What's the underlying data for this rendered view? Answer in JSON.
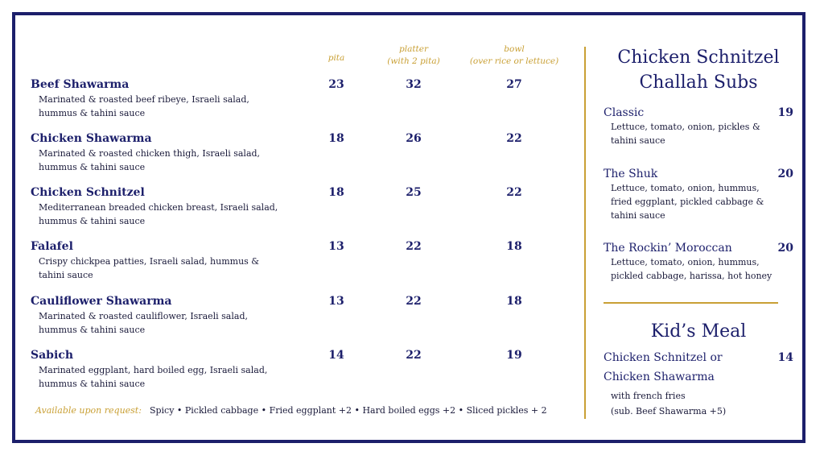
{
  "headers": {
    "pita": "pita",
    "platter": "platter",
    "platter_sub": "(with 2 pita)",
    "bowl": "bowl",
    "bowl_sub": "(over rice or lettuce)"
  },
  "items": [
    {
      "name": "Beef Shawarma",
      "desc1": "Marinated & roasted beef ribeye, Israeli salad,",
      "desc2": "hummus & tahini sauce",
      "pita": "23",
      "platter": "32",
      "bowl": "27"
    },
    {
      "name": "Chicken Shawarma",
      "desc1": "Marinated & roasted chicken thigh, Israeli salad,",
      "desc2": "hummus & tahini sauce",
      "pita": "18",
      "platter": "26",
      "bowl": "22"
    },
    {
      "name": "Chicken Schnitzel",
      "desc1": "Mediterranean breaded chicken breast, Israeli salad,",
      "desc2": "hummus & tahini sauce",
      "pita": "18",
      "platter": "25",
      "bowl": "22"
    },
    {
      "name": "Falafel",
      "desc1": "Crispy chickpea patties, Israeli salad, hummus &",
      "desc2": "tahini sauce",
      "pita": "13",
      "platter": "22",
      "bowl": "18"
    },
    {
      "name": "Cauliflower Shawarma",
      "desc1": "Marinated & roasted cauliflower, Israeli salad,",
      "desc2": "hummus & tahini sauce",
      "pita": "13",
      "platter": "22",
      "bowl": "18"
    },
    {
      "name": "Sabich",
      "desc1": "Marinated eggplant, hard boiled egg, Israeli salad,",
      "desc2": "hummus & tahini sauce",
      "pita": "14",
      "platter": "22",
      "bowl": "19"
    }
  ],
  "extras": {
    "label": "Available upon request:",
    "text": "Spicy • Pickled cabbage • Fried eggplant +2 • Hard boiled eggs +2 • Sliced pickles + 2"
  },
  "challah": {
    "title1": "Chicken Schnitzel",
    "title2": "Challah Subs",
    "subs": [
      {
        "name": "Classic",
        "price": "19",
        "desc": [
          "Lettuce, tomato, onion, pickles &",
          "tahini sauce"
        ]
      },
      {
        "name": "The Shuk",
        "price": "20",
        "desc": [
          "Lettuce, tomato, onion, hummus,",
          "fried eggplant, pickled cabbage &",
          "tahini sauce"
        ]
      },
      {
        "name": "The Rockin’ Moroccan",
        "price": "20",
        "desc": [
          "Lettuce, tomato, onion, hummus,",
          "pickled cabbage, harissa, hot honey"
        ]
      }
    ]
  },
  "kids": {
    "title": "Kid’s Meal",
    "name1": "Chicken Schnitzel or",
    "name2": "Chicken Shawarma",
    "price": "14",
    "desc1": "with french fries",
    "desc2": "(sub. Beef Shawarma +5)"
  },
  "colors": {
    "navy": "#1c1f6b",
    "gold": "#c9a035"
  }
}
